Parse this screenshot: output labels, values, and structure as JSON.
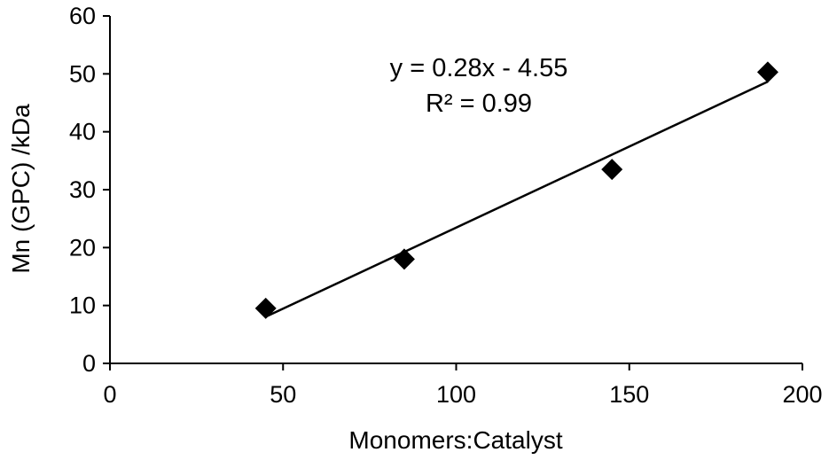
{
  "chart_data": {
    "type": "scatter",
    "title": "",
    "xlabel": "Monomers:Catalyst",
    "ylabel": "Mn (GPC) /kDa",
    "xlim": [
      0,
      200
    ],
    "ylim": [
      0,
      60
    ],
    "xticks": [
      "0",
      "50",
      "100",
      "150",
      "200"
    ],
    "yticks": [
      "0",
      "10",
      "20",
      "30",
      "40",
      "50",
      "60"
    ],
    "grid": false,
    "legend": "none",
    "series": [
      {
        "marker": "diamond",
        "color": "#000000",
        "x": [
          45,
          85,
          145,
          190
        ],
        "y": [
          9.5,
          18.0,
          33.5,
          50.3
        ]
      }
    ],
    "trendline": {
      "type": "linear",
      "slope": 0.28,
      "intercept": -4.55,
      "x_range": [
        45,
        190
      ],
      "color": "#000000"
    },
    "annotations": {
      "equation": "y = 0.28x - 4.55",
      "r_squared": "R² = 0.99"
    }
  }
}
